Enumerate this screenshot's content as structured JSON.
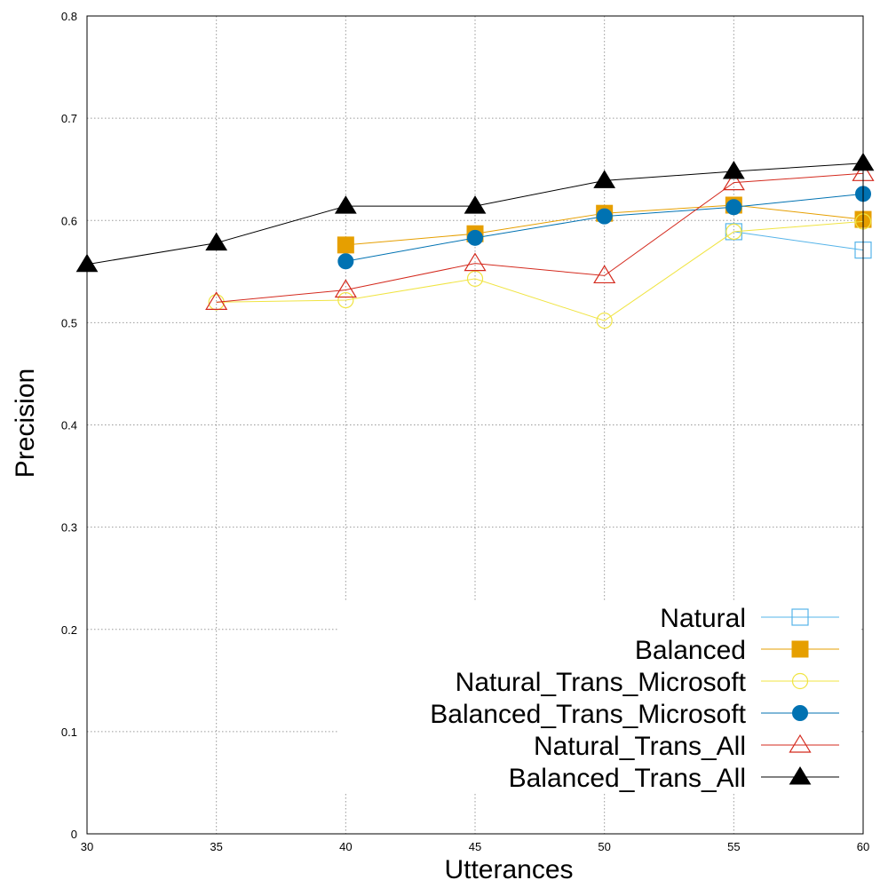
{
  "chart_data": {
    "type": "line",
    "xlabel": "Utterances",
    "ylabel": "Precision",
    "xlim": [
      30,
      60
    ],
    "ylim": [
      0,
      0.8
    ],
    "xticks": [
      "30",
      "35",
      "40",
      "45",
      "50",
      "55",
      "60"
    ],
    "yticks": [
      "0",
      "0.1",
      "0.2",
      "0.3",
      "0.4",
      "0.5",
      "0.6",
      "0.7",
      "0.8"
    ],
    "grid": true,
    "legend_position": "bottom-right",
    "series": [
      {
        "name": "Natural",
        "color": "#56b4e9",
        "marker": "square-open",
        "x": [
          55,
          60
        ],
        "y": [
          0.589,
          0.571
        ]
      },
      {
        "name": "Balanced",
        "color": "#e69f00",
        "marker": "square-filled",
        "x": [
          40,
          45,
          50,
          55,
          60
        ],
        "y": [
          0.576,
          0.587,
          0.607,
          0.615,
          0.601
        ]
      },
      {
        "name": "Natural_Trans_Microsoft",
        "color": "#f0e442",
        "marker": "circle-open",
        "x": [
          35,
          40,
          45,
          50,
          55,
          60
        ],
        "y": [
          0.52,
          0.522,
          0.543,
          0.502,
          0.589,
          0.599
        ]
      },
      {
        "name": "Balanced_Trans_Microsoft",
        "color": "#0072b2",
        "marker": "circle-filled",
        "x": [
          40,
          45,
          50,
          55,
          60
        ],
        "y": [
          0.56,
          0.583,
          0.604,
          0.613,
          0.626
        ]
      },
      {
        "name": "Natural_Trans_All",
        "color": "#d42a1e",
        "marker": "triangle-open",
        "x": [
          35,
          40,
          45,
          50,
          55,
          60
        ],
        "y": [
          0.52,
          0.532,
          0.558,
          0.546,
          0.637,
          0.646
        ]
      },
      {
        "name": "Balanced_Trans_All",
        "color": "#000000",
        "marker": "triangle-filled",
        "x": [
          30,
          35,
          40,
          45,
          50,
          55,
          60
        ],
        "y": [
          0.557,
          0.578,
          0.614,
          0.614,
          0.639,
          0.648,
          0.656
        ]
      }
    ]
  }
}
